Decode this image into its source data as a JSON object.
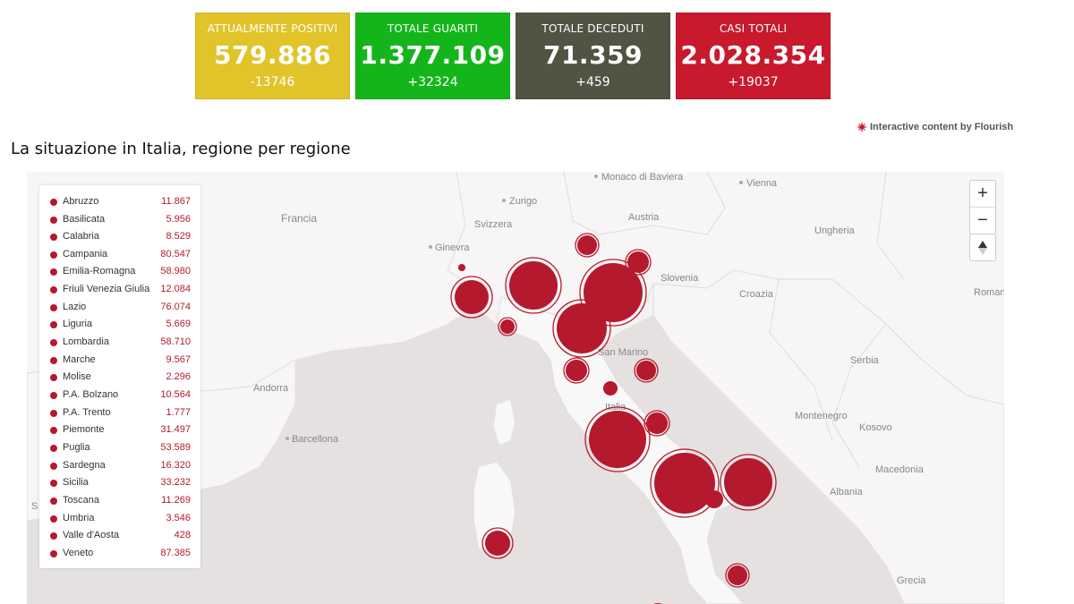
{
  "stats": [
    {
      "label": "ATTUALMENTE POSITIVI",
      "value": "579.886",
      "diff": "-13746",
      "color": "#e0c42a"
    },
    {
      "label": "TOTALE GUARITI",
      "value": "1.377.109",
      "diff": "+32324",
      "color": "#13b51b"
    },
    {
      "label": "TOTALE DECEDUTI",
      "value": "71.359",
      "diff": "+459",
      "color": "#4f5443"
    },
    {
      "label": "CASI TOTALI",
      "value": "2.028.354",
      "diff": "+19037",
      "color": "#c8192d"
    }
  ],
  "credit": "Interactive content by Flourish",
  "title": "La situazione in Italia, regione per regione",
  "accent": "#b5192d",
  "regions": [
    {
      "name": "Abruzzo",
      "value": "11.867"
    },
    {
      "name": "Basilicata",
      "value": "5.956"
    },
    {
      "name": "Calabria",
      "value": "8.529"
    },
    {
      "name": "Campania",
      "value": "80.547"
    },
    {
      "name": "Emilia-Romagna",
      "value": "58.980"
    },
    {
      "name": "Friuli Venezia Giulia",
      "value": "12.084"
    },
    {
      "name": "Lazio",
      "value": "76.074"
    },
    {
      "name": "Liguria",
      "value": "5.669"
    },
    {
      "name": "Lombardia",
      "value": "58.710"
    },
    {
      "name": "Marche",
      "value": "9.567"
    },
    {
      "name": "Molise",
      "value": "2.296"
    },
    {
      "name": "P.A. Bolzano",
      "value": "10.564"
    },
    {
      "name": "P.A. Trento",
      "value": "1.777"
    },
    {
      "name": "Piemonte",
      "value": "31.497"
    },
    {
      "name": "Puglia",
      "value": "53.589"
    },
    {
      "name": "Sardegna",
      "value": "16.320"
    },
    {
      "name": "Sicilia",
      "value": "33.232"
    },
    {
      "name": "Toscana",
      "value": "11.269"
    },
    {
      "name": "Umbria",
      "value": "3.546"
    },
    {
      "name": "Valle d'Aosta",
      "value": "428"
    },
    {
      "name": "Veneto",
      "value": "87.385"
    }
  ],
  "places": {
    "monaco": "Monaco di Baviera",
    "vienna": "Vienna",
    "zurigo": "Zurigo",
    "francia": "Francia",
    "svizzera": "Svizzera",
    "austria": "Austria",
    "ungheria": "Ungheria",
    "ginevra": "Ginevra",
    "slovenia": "Slovenia",
    "croazia": "Croazia",
    "roma": "Romania",
    "serbia": "Serbia",
    "andorra": "Andorra",
    "sanmarino": "San Marino",
    "italia": "Italia",
    "barcellona": "Barcellona",
    "montenegro": "Montenegro",
    "kosovo": "Kosovo",
    "macedonia": "Macedonia",
    "albania": "Albania",
    "grecia": "Grecia",
    "s": "S"
  },
  "map_controls": {
    "zoom_in": "+",
    "zoom_out": "−",
    "reset": "▲"
  }
}
